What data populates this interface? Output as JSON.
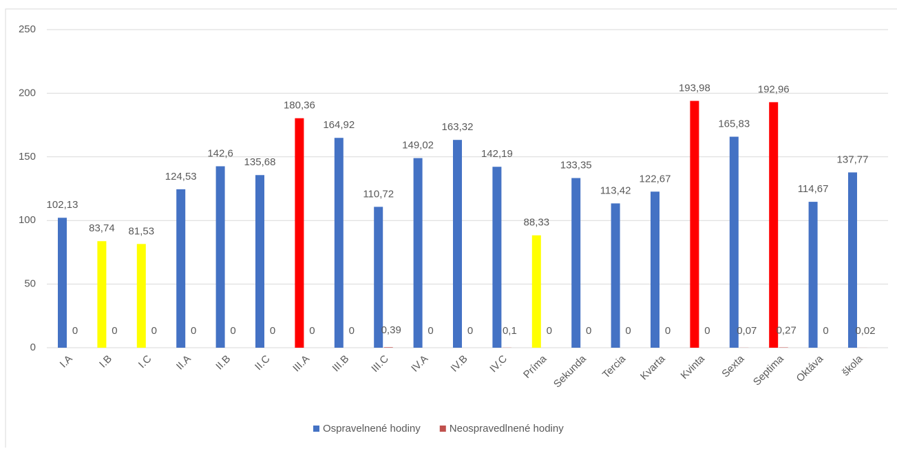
{
  "chart_data": {
    "type": "bar",
    "categories": [
      "I.A",
      "I.B",
      "I.C",
      "II.A",
      "II.B",
      "II.C",
      "III.A",
      "III.B",
      "III.C",
      "IV.A",
      "IV.B",
      "IV.C",
      "Príma",
      "Sekunda",
      "Tercia",
      "Kvarta",
      "Kvinta",
      "Sexta",
      "Septima",
      "Oktáva",
      "škola"
    ],
    "series": [
      {
        "name": "Ospravelnené hodiny",
        "color": "#4472c4",
        "colors": [
          "#4472c4",
          "#ffff00",
          "#ffff00",
          "#4472c4",
          "#4472c4",
          "#4472c4",
          "#ff0000",
          "#4472c4",
          "#4472c4",
          "#4472c4",
          "#4472c4",
          "#4472c4",
          "#ffff00",
          "#4472c4",
          "#4472c4",
          "#4472c4",
          "#ff0000",
          "#4472c4",
          "#ff0000",
          "#4472c4",
          "#4472c4"
        ],
        "values": [
          102.13,
          83.74,
          81.53,
          124.53,
          142.6,
          135.68,
          180.36,
          164.92,
          110.72,
          149.02,
          163.32,
          142.19,
          88.33,
          133.35,
          113.42,
          122.67,
          193.98,
          165.83,
          192.96,
          114.67,
          137.77
        ],
        "value_labels": [
          "102,13",
          "83,74",
          "81,53",
          "124,53",
          "142,6",
          "135,68",
          "180,36",
          "164,92",
          "110,72",
          "149,02",
          "163,32",
          "142,19",
          "88,33",
          "133,35",
          "113,42",
          "122,67",
          "193,98",
          "165,83",
          "192,96",
          "114,67",
          "137,77"
        ]
      },
      {
        "name": "Neospravedlnené hodiny",
        "color": "#c0504d",
        "values": [
          0,
          0,
          0,
          0,
          0,
          0,
          0,
          0,
          0.39,
          0,
          0,
          0.1,
          0,
          0,
          0,
          0,
          0,
          0.07,
          0.27,
          0,
          0.02
        ],
        "value_labels": [
          "0",
          "0",
          "0",
          "0",
          "0",
          "0",
          "0",
          "0",
          "0,39",
          "0",
          "0",
          "0,1",
          "0",
          "0",
          "0",
          "0",
          "0",
          "0,07",
          "0,27",
          "0",
          "0,02"
        ]
      }
    ],
    "ylim": [
      0,
      250
    ],
    "yticks": [
      0,
      50,
      100,
      150,
      200,
      250
    ],
    "grid": true,
    "legend": "bottom"
  }
}
